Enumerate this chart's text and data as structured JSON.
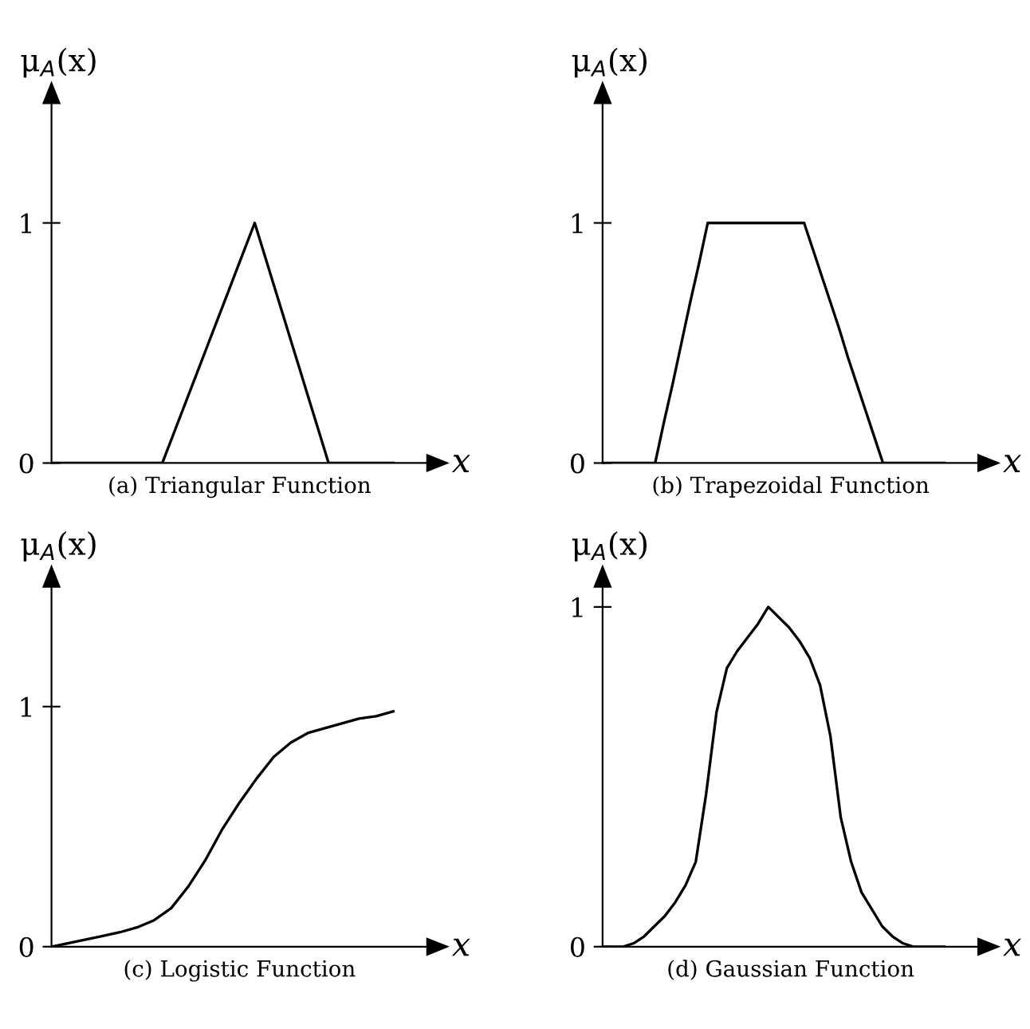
{
  "chart_data": [
    {
      "type": "line",
      "title": "(a) Triangular Function",
      "xlabel": "x",
      "ylabel": "μ$_{A}$(x)",
      "categories": [
        null,
        null,
        null,
        null,
        null,
        null,
        null,
        null,
        null,
        null,
        null,
        null,
        null,
        null,
        null,
        null,
        null,
        null,
        null,
        null,
        null,
        null,
        null,
        null,
        null,
        null,
        null,
        null,
        null,
        null,
        null,
        null,
        null,
        null,
        null,
        null,
        null,
        null
      ],
      "series": [
        {
          "color": "#000000",
          "values": [
            0,
            0,
            0,
            0,
            0,
            0,
            0,
            0,
            0,
            0,
            0,
            0,
            0,
            0.1,
            0.2,
            0.3,
            0.4,
            0.5,
            0.6,
            0.7,
            0.8,
            0.9,
            1,
            0.875,
            0.75,
            0.625,
            0.5,
            0.375,
            0.25,
            0.125,
            0,
            0,
            0,
            0,
            0,
            0,
            0,
            0
          ]
        }
      ],
      "ylim": [
        0,
        1.5
      ],
      "yticks": [
        0,
        1
      ],
      "tick_labels": "y",
      "grid": false,
      "legend": false,
      "marker": "none",
      "line_style": "solid"
    },
    {
      "type": "line",
      "title": "(b) Trapezoidal Function",
      "xlabel": "x",
      "ylabel": "μ$_{A}$(x)",
      "categories": [
        null,
        null,
        null,
        null,
        null,
        null,
        null,
        null,
        null,
        null,
        null,
        null,
        null,
        null,
        null,
        null,
        null,
        null,
        null,
        null,
        null,
        null,
        null,
        null,
        null,
        null,
        null,
        null,
        null,
        null,
        null,
        null,
        null,
        null,
        null,
        null,
        null,
        null,
        null,
        null
      ],
      "series": [
        {
          "color": "#000000",
          "values": [
            0,
            0,
            0,
            0,
            0,
            0,
            0,
            0.17,
            0.33,
            0.5,
            0.67,
            0.83,
            1,
            1,
            1,
            1,
            1,
            1,
            1,
            1,
            1,
            1,
            1,
            1,
            0.89,
            0.78,
            0.67,
            0.56,
            0.44,
            0.33,
            0.22,
            0.11,
            0,
            0,
            0,
            0,
            0,
            0,
            0,
            0
          ]
        }
      ],
      "ylim": [
        0,
        1.5
      ],
      "yticks": [
        0,
        1
      ],
      "tick_labels": "y",
      "grid": false,
      "legend": false,
      "marker": "none",
      "line_style": "solid"
    },
    {
      "type": "line",
      "title": "(c) Logistic Function",
      "xlabel": "x",
      "ylabel": "μ$_{A}$(x)",
      "categories": [
        null,
        null,
        null,
        null,
        null,
        null,
        null,
        null,
        null,
        null,
        null,
        null,
        null,
        null,
        null,
        null,
        null,
        null,
        null,
        null,
        null
      ],
      "series": [
        {
          "color": "#000000",
          "values": [
            0,
            0.015,
            0.03,
            0.045,
            0.06,
            0.08,
            0.11,
            0.16,
            0.25,
            0.36,
            0.49,
            0.6,
            0.7,
            0.79,
            0.85,
            0.89,
            0.91,
            0.93,
            0.95,
            0.96,
            0.98
          ]
        }
      ],
      "ylim": [
        0,
        1.5
      ],
      "yticks": [
        0,
        1
      ],
      "tick_labels": "y",
      "grid": false,
      "legend": false,
      "marker": "none",
      "line_style": "solid"
    },
    {
      "type": "line",
      "title": "(d) Gaussian Function",
      "xlabel": "x",
      "ylabel": "μ$_{A}$(x)",
      "categories": [
        null,
        null,
        null,
        null,
        null,
        null,
        null,
        null,
        null,
        null,
        null,
        null,
        null,
        null,
        null,
        null,
        null,
        null,
        null,
        null,
        null,
        null,
        null,
        null,
        null,
        null,
        null,
        null,
        null,
        null,
        null,
        null,
        null,
        null
      ],
      "series": [
        {
          "color": "#000000",
          "values": [
            0,
            0,
            0,
            0.01,
            0.03,
            0.06,
            0.09,
            0.13,
            0.18,
            0.25,
            0.45,
            0.69,
            0.82,
            0.87,
            0.91,
            0.95,
            1,
            0.97,
            0.94,
            0.9,
            0.85,
            0.77,
            0.62,
            0.38,
            0.25,
            0.16,
            0.11,
            0.06,
            0.03,
            0.01,
            0,
            0,
            0,
            0
          ]
        }
      ],
      "ylim": [
        0,
        1.06
      ],
      "yticks": [
        0,
        1
      ],
      "tick_labels": "y",
      "grid": false,
      "legend": false,
      "marker": "none",
      "line_style": "solid"
    }
  ]
}
